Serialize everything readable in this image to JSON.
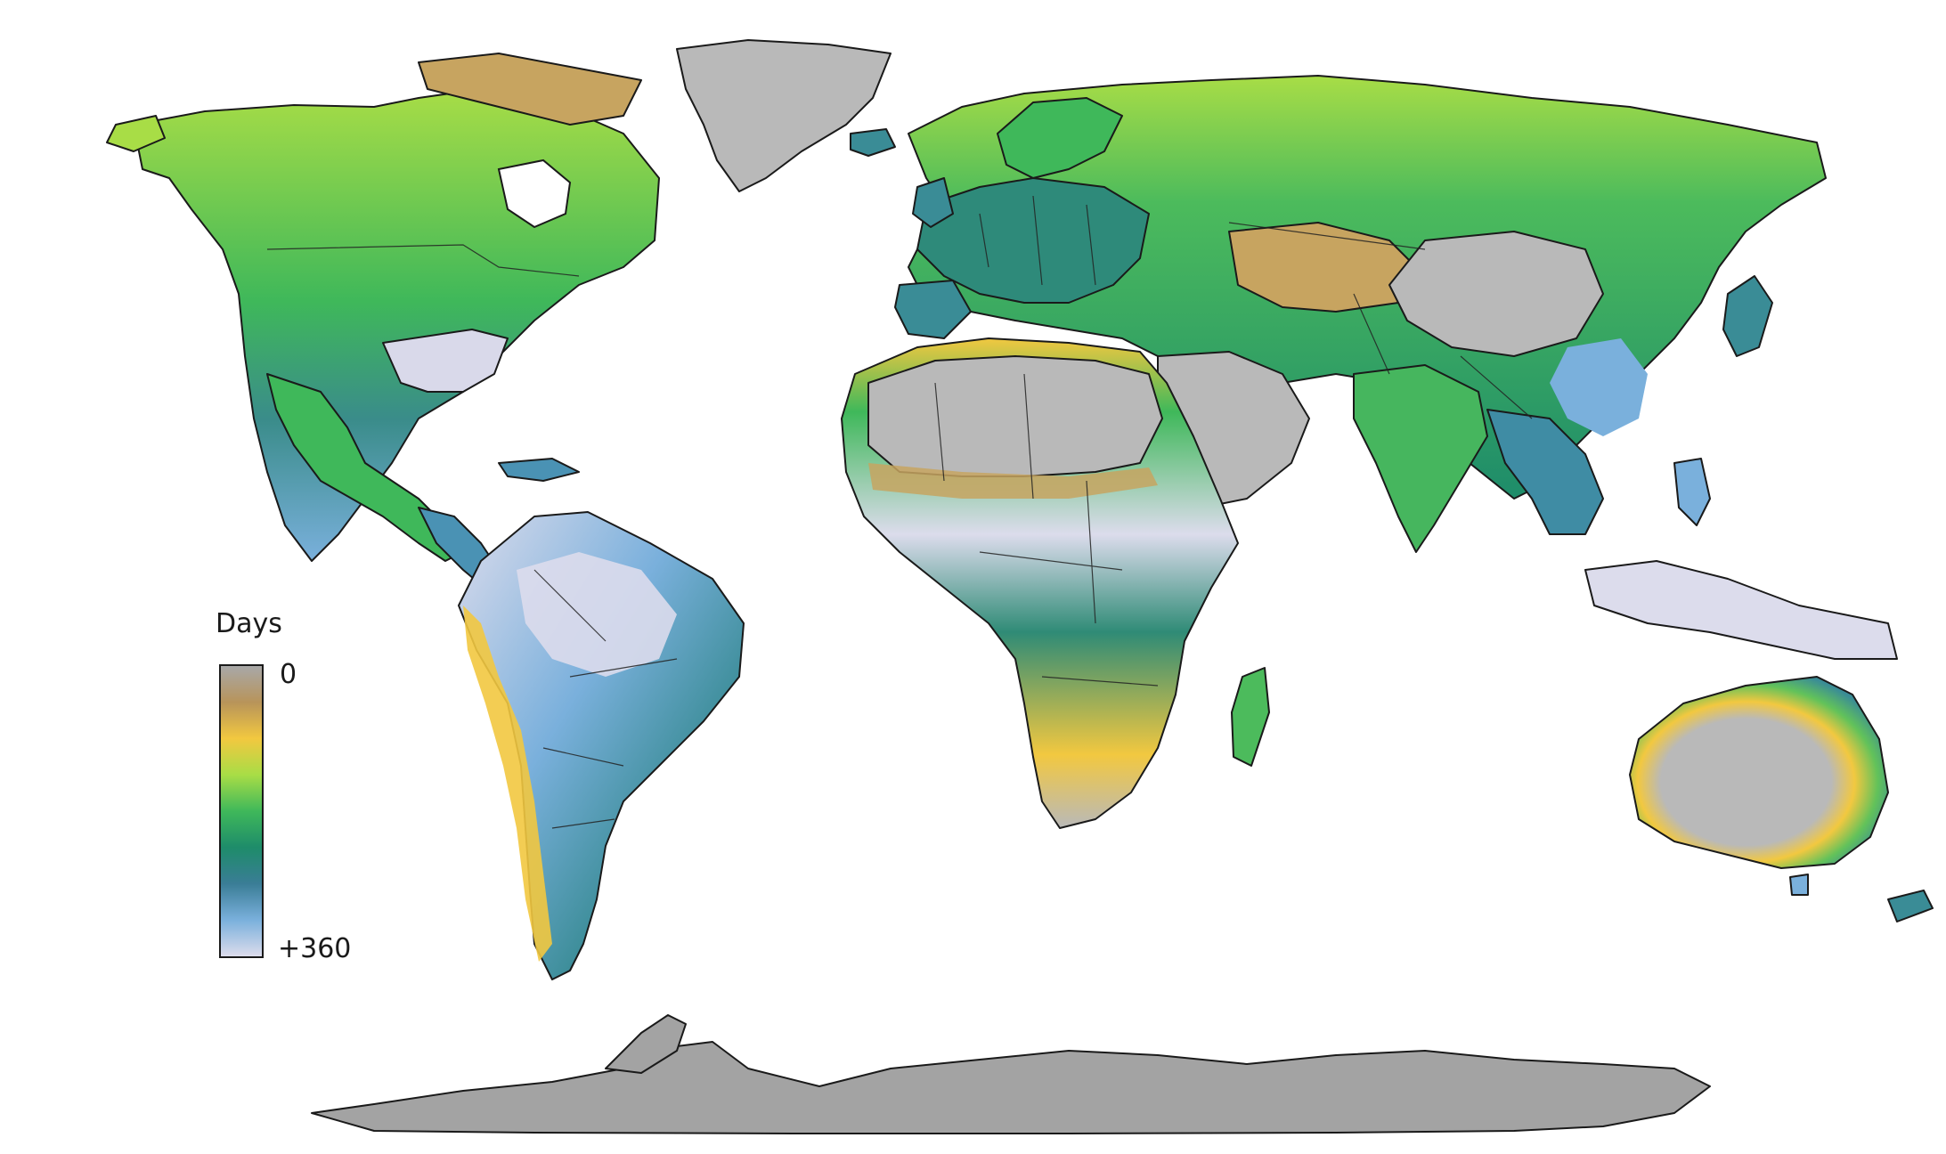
{
  "legend": {
    "title": "Days",
    "min_label": "0",
    "max_label": "+360",
    "color_stops": [
      "#a8a8a8",
      "#b8945a",
      "#f2c840",
      "#a8dd46",
      "#3fb85a",
      "#1e8c6a",
      "#3a7d96",
      "#7ab0dc",
      "#dcdcec"
    ]
  },
  "colors": {
    "no_data_gray": "#b9b9b9",
    "ice_gray": "#a3a3a3",
    "outline": "#1a1a1a"
  },
  "regions": [
    {
      "name": "north-america",
      "fill": "#62c25a"
    },
    {
      "name": "eastern-us",
      "fill": "#d9d9ea"
    },
    {
      "name": "greenland",
      "fill": "#b9b9b9"
    },
    {
      "name": "south-america",
      "fill": "#4a92b4"
    },
    {
      "name": "eurasia",
      "fill": "#4cbb5c"
    },
    {
      "name": "europe",
      "fill": "#2e8a7a"
    },
    {
      "name": "africa",
      "fill": "#2f8b76"
    },
    {
      "name": "sahara",
      "fill": "#b9b9b9"
    },
    {
      "name": "arabia",
      "fill": "#b9b9b9"
    },
    {
      "name": "india",
      "fill": "#46b65e"
    },
    {
      "name": "southeast-asia",
      "fill": "#3f8ca4"
    },
    {
      "name": "china-desert",
      "fill": "#b9b9b9"
    },
    {
      "name": "australia",
      "fill": "#58c35a"
    },
    {
      "name": "antarctica",
      "fill": "#a3a3a3"
    }
  ]
}
